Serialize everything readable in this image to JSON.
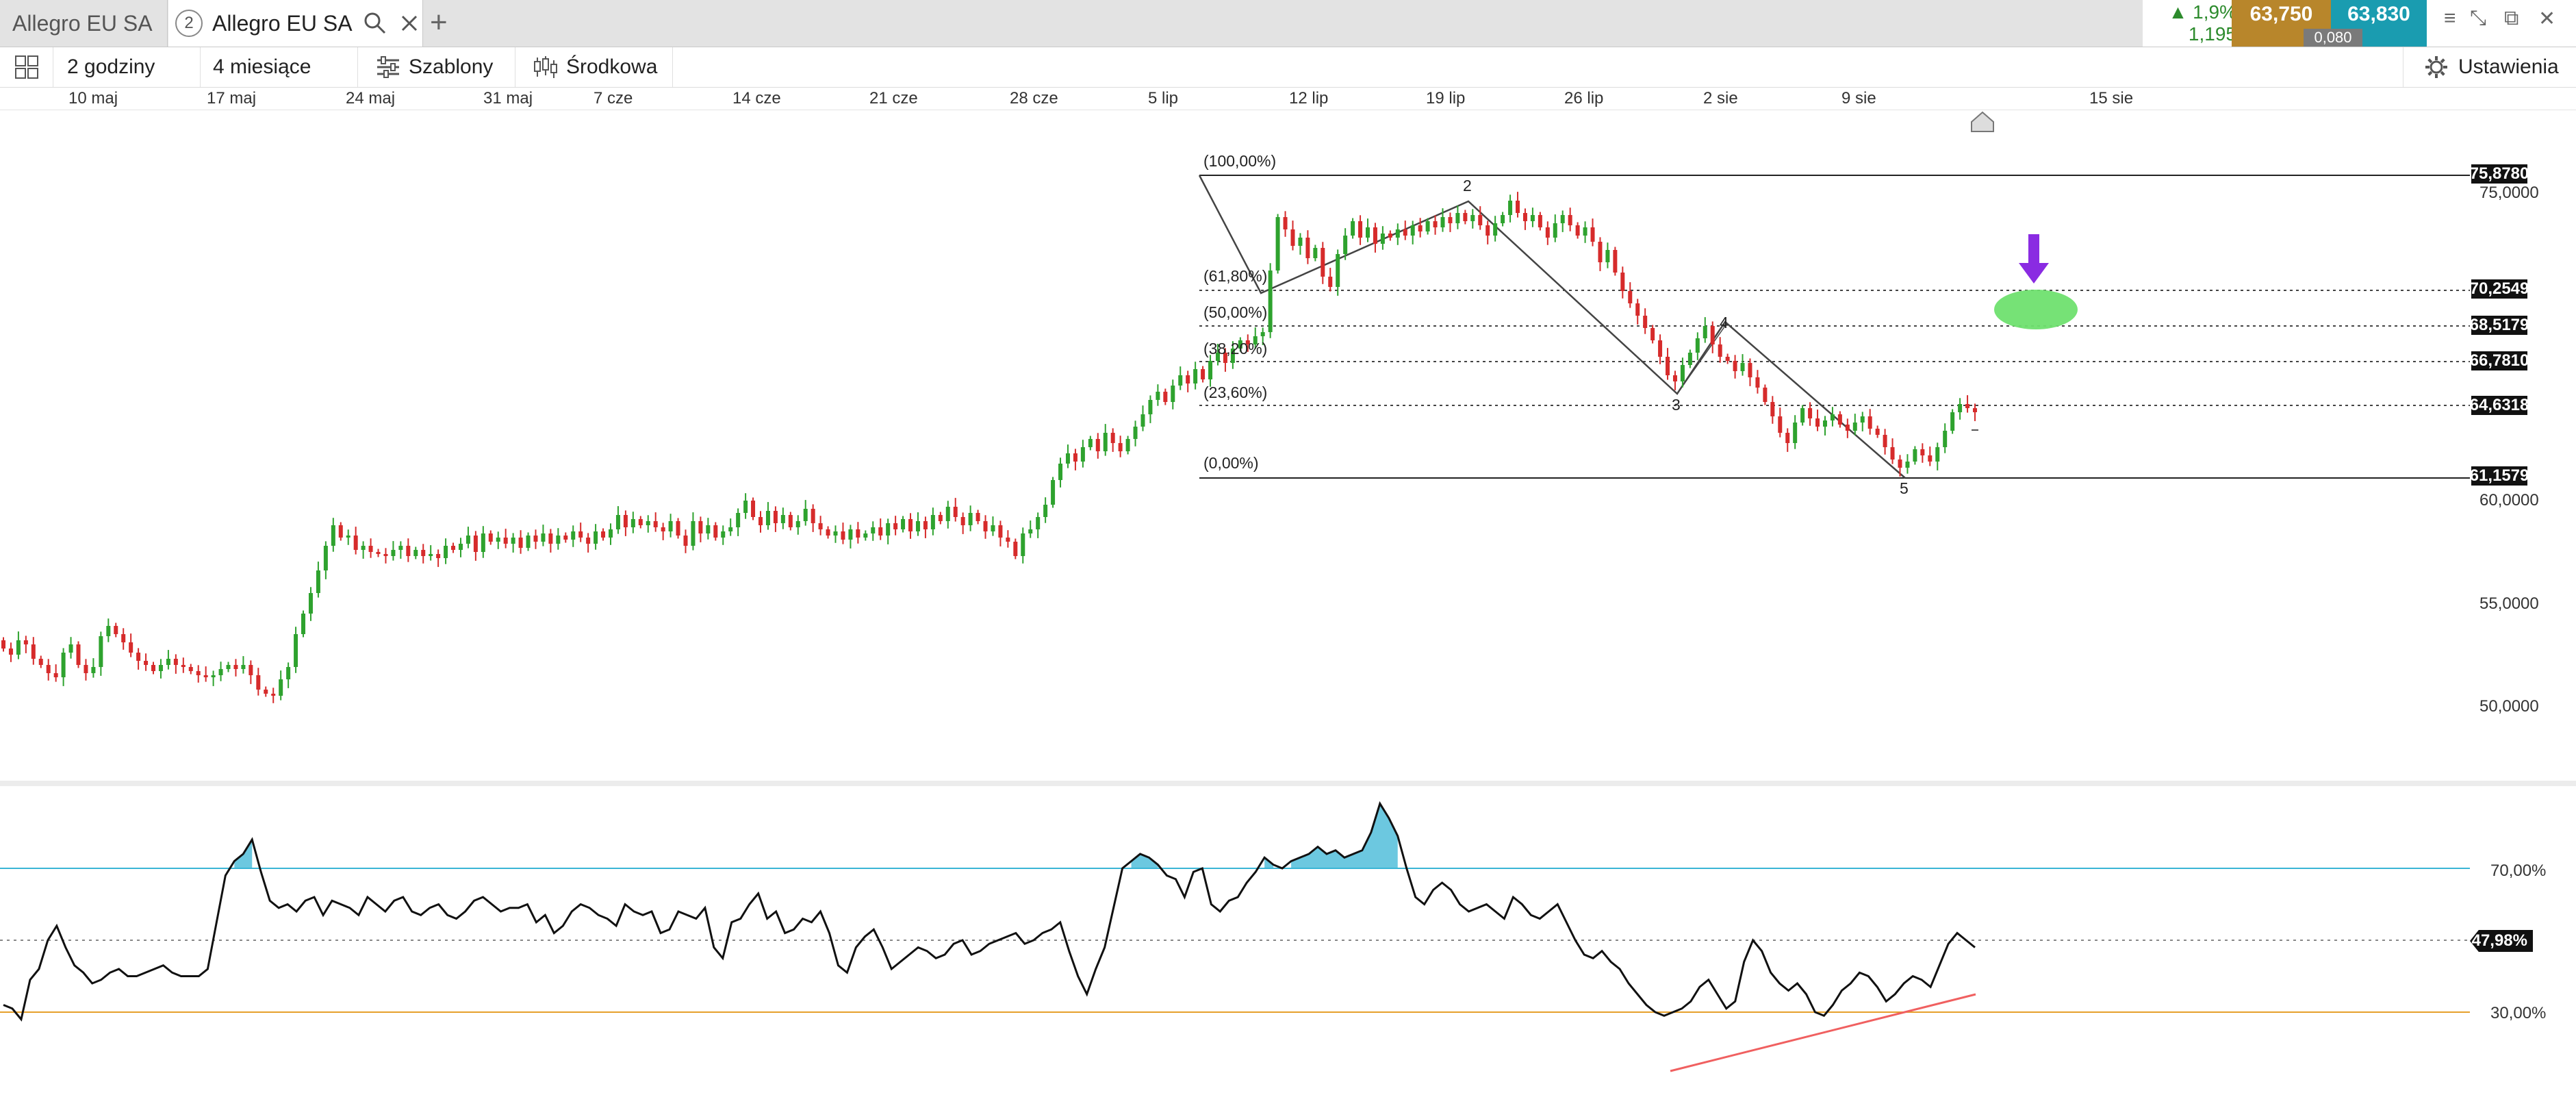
{
  "tabs": {
    "inactive_label": "Allegro EU SA",
    "active_number": "2",
    "active_label": "Allegro EU SA"
  },
  "quote": {
    "change_pct": "1,9%",
    "change_abs": "1,195",
    "bid": "63,750",
    "ask": "63,830",
    "spread": "0,080"
  },
  "toolbar": {
    "interval": "2 godziny",
    "range": "4 miesiące",
    "templates": "Szablony",
    "indicators": "Środkowa",
    "settings": "Ustawienia"
  },
  "x_axis_labels": [
    "10 maj",
    "17 maj",
    "24 maj",
    "31 maj",
    "7 cze",
    "14 cze",
    "21 cze",
    "28 cze",
    "5 lip",
    "12 lip",
    "19 lip",
    "26 lip",
    "2 sie",
    "9 sie",
    "15 sie"
  ],
  "price_axis": [
    "75,0000",
    "60,0000",
    "55,0000",
    "50,0000"
  ],
  "price_boxes": [
    "75,8780",
    "70,2549",
    "68,5179",
    "66,7810",
    "64,6318",
    "61,1579"
  ],
  "fib_labels": [
    "(100,00%)",
    "(61,80%)",
    "(50,00%)",
    "(38,20%)",
    "(23,60%)",
    "(0,00%)"
  ],
  "wave_labels": [
    "2",
    "3",
    "4",
    "5"
  ],
  "rsi": {
    "axis": [
      "70,00%",
      "30,00%"
    ],
    "current": "47,98%"
  },
  "colors": {
    "up": "#2ea22e",
    "down": "#d62b2b",
    "rsi_upper": "#3bb5d6",
    "rsi_lower": "#e6a02b",
    "arrow": "#8a2be2",
    "target": "#6fe06f",
    "trendline": "#f06060"
  },
  "chart_data": [
    {
      "type": "candlestick",
      "title": "Allegro EU SA",
      "x_ticks": [
        "10 maj",
        "17 maj",
        "24 maj",
        "31 maj",
        "7 cze",
        "14 cze",
        "21 cze",
        "28 cze",
        "5 lip",
        "12 lip",
        "19 lip",
        "26 lip",
        "2 sie",
        "9 sie",
        "15 sie"
      ],
      "y_ticks": [
        75,
        60,
        55,
        50
      ],
      "ylim": [
        46.5,
        80
      ],
      "grid": false,
      "closes": [
        52.8,
        52.5,
        53.2,
        53.0,
        52.3,
        52.0,
        51.6,
        51.4,
        52.6,
        53.0,
        52.0,
        51.6,
        51.9,
        53.4,
        53.9,
        53.5,
        53.1,
        52.6,
        52.2,
        52.0,
        51.7,
        52.0,
        52.3,
        52.0,
        51.9,
        51.7,
        51.5,
        51.4,
        51.5,
        51.8,
        52.0,
        51.8,
        52.0,
        51.5,
        50.8,
        50.6,
        50.5,
        51.3,
        51.9,
        53.5,
        54.5,
        55.5,
        56.6,
        57.8,
        58.8,
        58.2,
        58.3,
        57.6,
        57.8,
        57.5,
        57.4,
        57.3,
        57.6,
        57.8,
        57.3,
        57.6,
        57.3,
        57.4,
        57.2,
        57.8,
        57.6,
        57.9,
        58.3,
        57.5,
        58.4,
        58.0,
        58.2,
        57.9,
        58.2,
        57.7,
        58.3,
        58.0,
        58.4,
        57.9,
        58.3,
        58.1,
        58.5,
        58.2,
        57.9,
        58.5,
        58.2,
        58.6,
        59.3,
        58.7,
        59.1,
        58.8,
        59.0,
        58.7,
        58.5,
        59.0,
        58.3,
        57.8,
        59.0,
        58.4,
        58.8,
        58.2,
        58.5,
        58.7,
        59.4,
        60.0,
        59.2,
        58.8,
        59.5,
        58.9,
        59.3,
        58.7,
        59.0,
        59.6,
        58.9,
        58.6,
        58.3,
        58.5,
        58.1,
        58.6,
        58.2,
        58.4,
        58.7,
        58.3,
        58.9,
        58.6,
        59.1,
        58.5,
        59.0,
        58.6,
        59.3,
        59.0,
        59.7,
        59.2,
        58.8,
        59.4,
        59.0,
        58.5,
        58.8,
        58.2,
        58.0,
        57.3,
        58.4,
        58.6,
        59.2,
        59.8,
        61.0,
        61.8,
        62.3,
        61.9,
        62.6,
        63.0,
        62.4,
        63.3,
        62.8,
        62.4,
        63.0,
        63.6,
        64.2,
        64.9,
        65.3,
        64.8,
        65.6,
        66.1,
        65.7,
        66.4,
        65.9,
        66.8,
        67.2,
        66.7,
        67.4,
        67.8,
        67.6,
        68.0,
        68.2,
        71.2,
        73.8,
        73.2,
        72.4,
        72.8,
        71.8,
        72.3,
        70.9,
        70.4,
        72.0,
        72.9,
        73.6,
        72.8,
        73.3,
        72.5,
        73.0,
        72.8,
        73.2,
        72.9,
        73.4,
        73.1,
        73.6,
        73.3,
        73.8,
        73.5,
        74.0,
        73.6,
        73.9,
        73.4,
        72.9,
        73.5,
        73.9,
        74.6,
        74.0,
        73.6,
        73.9,
        73.3,
        72.8,
        73.5,
        73.9,
        73.4,
        72.9,
        73.3,
        72.6,
        71.6,
        72.2,
        71.1,
        70.2,
        69.6,
        69.0,
        68.4,
        67.8,
        67.0,
        66.1,
        65.8,
        66.6,
        67.2,
        67.9,
        68.5,
        67.6,
        67.0,
        66.8,
        66.3,
        66.7,
        66.0,
        65.5,
        64.8,
        64.1,
        63.3,
        62.8,
        63.8,
        64.5,
        64.0,
        63.6,
        63.9,
        64.2,
        63.7,
        63.4,
        63.8,
        64.1,
        63.5,
        63.2,
        62.6,
        62.0,
        61.6,
        61.9,
        62.5,
        62.2,
        61.9,
        62.6,
        63.4,
        64.3,
        64.7,
        64.5,
        64.3
      ]
    },
    {
      "type": "line",
      "title": "RSI",
      "y_ticks": [
        "70,00%",
        "30,00%"
      ],
      "ylim": [
        3,
        100
      ],
      "reference_lines": [
        70,
        50,
        30
      ],
      "values": [
        32,
        31,
        28,
        39,
        42,
        50,
        54,
        48,
        43,
        41,
        38,
        39,
        41,
        42,
        40,
        40,
        41,
        42,
        43,
        41,
        40,
        40,
        40,
        42,
        55,
        68,
        72,
        74,
        78,
        69,
        61,
        59,
        60,
        58,
        61,
        62,
        57,
        61,
        60,
        59,
        57,
        62,
        60,
        58,
        61,
        62,
        58,
        57,
        59,
        60,
        57,
        56,
        58,
        61,
        62,
        60,
        58,
        59,
        59,
        60,
        55,
        57,
        52,
        54,
        58,
        60,
        59,
        57,
        56,
        54,
        60,
        58,
        57,
        58,
        52,
        53,
        58,
        57,
        56,
        59,
        48,
        45,
        55,
        56,
        60,
        63,
        56,
        58,
        52,
        53,
        56,
        55,
        58,
        52,
        43,
        41,
        48,
        51,
        53,
        48,
        42,
        44,
        46,
        48,
        47,
        45,
        46,
        49,
        50,
        46,
        47,
        49,
        50,
        51,
        52,
        49,
        50,
        52,
        53,
        55,
        47,
        40,
        35,
        42,
        48,
        59,
        70,
        72,
        74,
        73,
        71,
        68,
        67,
        62,
        69,
        70,
        60,
        58,
        61,
        62,
        66,
        69,
        73,
        71,
        70,
        72,
        73,
        74,
        76,
        74,
        75,
        73,
        74,
        75,
        80,
        88,
        84,
        79,
        70,
        62,
        60,
        64,
        66,
        64,
        60,
        58,
        59,
        60,
        58,
        56,
        62,
        60,
        57,
        56,
        58,
        60,
        55,
        50,
        46,
        45,
        47,
        44,
        42,
        38,
        35,
        32,
        30,
        29,
        30,
        31,
        33,
        37,
        39,
        35,
        31,
        33,
        44,
        50,
        47,
        41,
        38,
        36,
        38,
        35,
        30,
        29,
        32,
        36,
        38,
        41,
        40,
        37,
        33,
        35,
        38,
        40,
        39,
        37,
        43,
        49,
        52,
        50,
        48
      ],
      "current": 47.98
    }
  ]
}
